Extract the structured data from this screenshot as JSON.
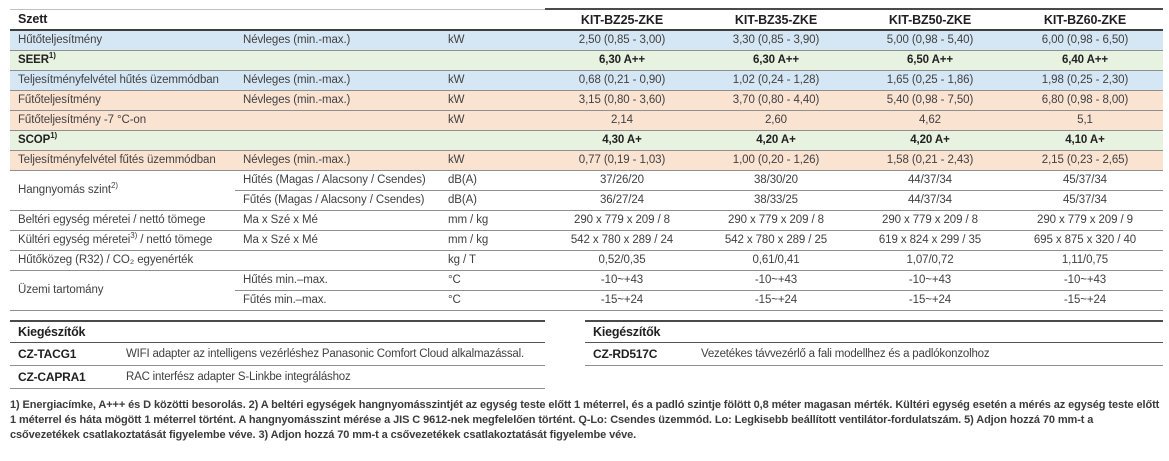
{
  "colors": {
    "row_blue": "#d5e6f4",
    "row_green": "#e8f2e0",
    "row_peach": "#fbe3d2",
    "row_white": "#ffffff",
    "line_gray": "#8f8f8f",
    "line_dark": "#3f3f3f"
  },
  "table": {
    "header": {
      "title": "Szett",
      "models": [
        "KIT-BZ25-ZKE",
        "KIT-BZ35-ZKE",
        "KIT-BZ50-ZKE",
        "KIT-BZ60-ZKE"
      ]
    },
    "rows": [
      {
        "bg": "blue",
        "label": "Hűtőteljesítmény",
        "sub": "Névleges (min.-max.)",
        "unit": "kW",
        "values": [
          "2,50 (0,85 - 3,00)",
          "3,30 (0,85 - 3,90)",
          "5,00 (0,98 - 5,40)",
          "6,00 (0,98 - 6,50)"
        ]
      },
      {
        "bg": "green",
        "label": "SEER",
        "sup": "1)",
        "lspan": 3,
        "bold": true,
        "values": [
          "6,30 A++",
          "6,30 A++",
          "6,50 A++",
          "6,40 A++"
        ]
      },
      {
        "bg": "blue",
        "label": "Teljesítményfelvétel hűtés üzemmódban",
        "sub": "Névleges (min.-max.)",
        "unit": "kW",
        "values": [
          "0,68 (0,21 - 0,90)",
          "1,02 (0,24 - 1,28)",
          "1,65 (0,25 - 1,86)",
          "1,98 (0,25 - 2,30)"
        ]
      },
      {
        "bg": "peach",
        "label": "Fűtőteljesítmény",
        "sub": "Névleges (min.-max.)",
        "unit": "kW",
        "values": [
          "3,15 (0,80 - 3,60)",
          "3,70 (0,80 - 4,40)",
          "5,40 (0,98 - 7,50)",
          "6,80 (0,98 - 8,00)"
        ]
      },
      {
        "bg": "peach",
        "label": "Fűtőteljesítmény -7 °C-on",
        "lspan": 2,
        "unit": "kW",
        "values": [
          "2,14",
          "2,60",
          "4,62",
          "5,1"
        ]
      },
      {
        "bg": "green",
        "label": "SCOP",
        "sup": "1)",
        "lspan": 3,
        "bold": true,
        "values": [
          "4,30 A+",
          "4,20 A+",
          "4,20 A+",
          "4,10 A+"
        ]
      },
      {
        "bg": "peach",
        "label": "Teljesítményfelvétel fűtés üzemmódban",
        "sub": "Névleges (min.-max.)",
        "unit": "kW",
        "values": [
          "0,77 (0,19 - 1,03)",
          "1,00 (0,20 - 1,26)",
          "1,58 (0,21 - 2,43)",
          "2,15 (0,23 - 2,65)"
        ]
      },
      {
        "bg": "white",
        "label": "Hangnyomás szint",
        "sup": "2)",
        "rowspan": 2,
        "sub": "Hűtés (Magas / Alacsony / Csendes)",
        "unit": "dB(A)",
        "values": [
          "37/26/20",
          "38/30/20",
          "44/37/34",
          "45/37/34"
        ]
      },
      {
        "bg": "white",
        "sub": "Fűtés (Magas / Alacsony / Csendes)",
        "unit": "dB(A)",
        "values": [
          "36/27/24",
          "38/33/25",
          "44/37/34",
          "45/37/34"
        ]
      },
      {
        "bg": "white",
        "label": "Beltéri egység méretei / nettó tömege",
        "sub": "Ma x Szé x Mé",
        "unit": "mm / kg",
        "values": [
          "290 x 779 x 209 / 8",
          "290 x 779 x 209 / 8",
          "290 x 779 x 209 / 8",
          "290 x 779 x 209 / 9"
        ]
      },
      {
        "bg": "white",
        "label": "Kültéri egység méretei",
        "sup": "3)",
        "tail": " / nettó tömege",
        "sub": "Ma x Szé x Mé",
        "unit": "mm / kg",
        "values": [
          "542 x 780 x 289 / 24",
          "542 x 780 x 289 / 25",
          "619 x 824 x 299 / 35",
          "695 x 875 x 320 / 40"
        ]
      },
      {
        "bg": "white",
        "label": "Hűtőközeg (R32) / CO₂ egyenérték",
        "lspan": 2,
        "unit": "kg / T",
        "values": [
          "0,52/0,35",
          "0,61/0,41",
          "1,07/0,72",
          "1,11/0,75"
        ]
      },
      {
        "bg": "white",
        "label": "Üzemi tartomány",
        "rowspan": 2,
        "sub": "Hűtés min.–max.",
        "unit": "°C",
        "values": [
          "-10~+43",
          "-10~+43",
          "-10~+43",
          "-10~+43"
        ]
      },
      {
        "bg": "white",
        "sub": "Fűtés min.–max.",
        "unit": "°C",
        "values": [
          "-15~+24",
          "-15~+24",
          "-15~+24",
          "-15~+24"
        ]
      }
    ]
  },
  "accessories_left": {
    "title": "Kiegészítők",
    "items": [
      {
        "code": "CZ-TACG1",
        "desc": "WIFI adapter az intelligens vezérléshez Panasonic Comfort Cloud alkalmazással."
      },
      {
        "code": "CZ-CAPRA1",
        "desc": "RAC interfész adapter S-Linkbe integráláshoz"
      }
    ]
  },
  "accessories_right": {
    "title": "Kiegészítők",
    "items": [
      {
        "code": "CZ-RD517C",
        "desc": "Vezetékes távvezérlő a fali modellhez és a padlókonzolhoz"
      }
    ]
  },
  "footnotes": "1) Energiacímke, A+++ és D közötti besorolás. 2) A beltéri egységek hangnyomásszintjét az egység teste előtt 1 méterrel, és a padló szintje fölött 0,8 méter magasan mérték. Kültéri egység esetén a mérés az egység teste előtt 1 méterrel és háta mögött 1 méterrel történt. A hangnyomásszint mérése a JIS C 9612-nek megfelelően történt. Q-Lo: Csendes üzemmód. Lo: Legkisebb beállított ventilátor-fordulatszám. 5) Adjon hozzá 70 mm-t a csővezetékek csatlakoztatását figyelembe véve. 3) Adjon hozzá 70 mm-t a csővezetékek csatlakoztatását figyelembe véve."
}
